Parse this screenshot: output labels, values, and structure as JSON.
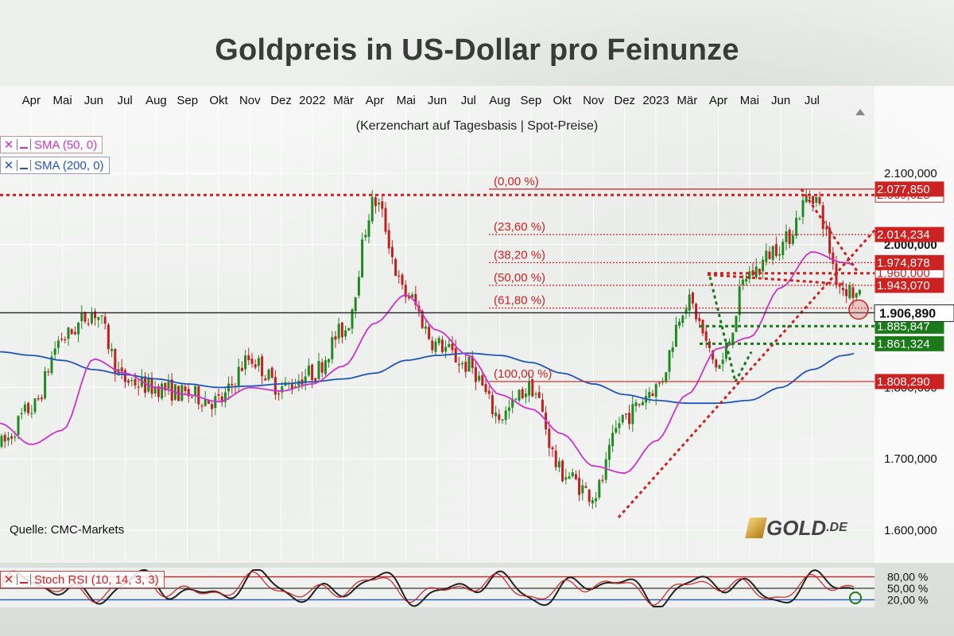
{
  "title": "Goldpreis in US-Dollar pro Feinunze",
  "subtitle": "(Kerzenchart auf Tagesbasis | Spot-Preise)",
  "source": "Quelle: CMC-Markets",
  "logo": {
    "main": "GOLD",
    "suffix": ".DE"
  },
  "legend": {
    "sma50": {
      "label": "SMA (50, 0)",
      "color": "#cc33cc"
    },
    "sma200": {
      "label": "SMA (200, 0)",
      "color": "#2255bb"
    },
    "stoch": {
      "label": "Stoch RSI (10, 14, 3, 3)"
    }
  },
  "months": [
    "Apr",
    "Mai",
    "Jun",
    "Jul",
    "Aug",
    "Sep",
    "Okt",
    "Nov",
    "Dez",
    "2022",
    "Mär",
    "Apr",
    "Mai",
    "Jun",
    "Jul",
    "Aug",
    "Sep",
    "Okt",
    "Nov",
    "Dez",
    "2023",
    "Mär",
    "Apr",
    "Mai",
    "Jun",
    "Jul"
  ],
  "colors": {
    "up": "#1f8a1f",
    "down": "#c0201f",
    "fib": "#cc2222",
    "support": "#1a7a1a",
    "current": "#222222"
  },
  "chart_data": {
    "type": "candlestick",
    "title": "Goldpreis in US-Dollar pro Feinunze",
    "subtitle": "(Kerzenchart auf Tagesbasis | Spot-Preise)",
    "y_axis_ticks": [
      "2.100,000",
      "2.000,000",
      "1.800,000",
      "1.700,000",
      "1.600,000"
    ],
    "y_axis_tick_values": [
      2100,
      2000,
      1800,
      1700,
      1600
    ],
    "ylim": [
      1580,
      2120
    ],
    "x_range": [
      "2021-03",
      "2023-07"
    ],
    "price_path": [
      [
        "2021-03",
        1720
      ],
      [
        "2021-04",
        1770
      ],
      [
        "2021-05",
        1870
      ],
      [
        "2021-06",
        1905
      ],
      [
        "2021-07",
        1810
      ],
      [
        "2021-08",
        1800
      ],
      [
        "2021-09",
        1790
      ],
      [
        "2021-10",
        1780
      ],
      [
        "2021-11",
        1840
      ],
      [
        "2021-12",
        1800
      ],
      [
        "2022-01",
        1820
      ],
      [
        "2022-02",
        1880
      ],
      [
        "2022-03",
        2060
      ],
      [
        "2022-04",
        1930
      ],
      [
        "2022-05",
        1860
      ],
      [
        "2022-06",
        1830
      ],
      [
        "2022-07",
        1760
      ],
      [
        "2022-08",
        1800
      ],
      [
        "2022-09",
        1680
      ],
      [
        "2022-10",
        1650
      ],
      [
        "2022-11",
        1760
      ],
      [
        "2022-12",
        1800
      ],
      [
        "2023-01",
        1920
      ],
      [
        "2023-02",
        1830
      ],
      [
        "2023-03",
        1960
      ],
      [
        "2023-04",
        2000
      ],
      [
        "2023-05",
        2070
      ],
      [
        "2023-06",
        1940
      ],
      [
        "2023-07",
        1910
      ]
    ],
    "sma50": [
      [
        "2021-03",
        1750
      ],
      [
        "2021-04",
        1720
      ],
      [
        "2021-05",
        1740
      ],
      [
        "2021-06",
        1840
      ],
      [
        "2021-07",
        1820
      ],
      [
        "2021-08",
        1800
      ],
      [
        "2021-09",
        1790
      ],
      [
        "2021-10",
        1780
      ],
      [
        "2021-11",
        1800
      ],
      [
        "2021-12",
        1795
      ],
      [
        "2022-01",
        1805
      ],
      [
        "2022-02",
        1830
      ],
      [
        "2022-03",
        1890
      ],
      [
        "2022-04",
        1930
      ],
      [
        "2022-05",
        1880
      ],
      [
        "2022-06",
        1845
      ],
      [
        "2022-07",
        1790
      ],
      [
        "2022-08",
        1770
      ],
      [
        "2022-09",
        1735
      ],
      [
        "2022-10",
        1690
      ],
      [
        "2022-11",
        1680
      ],
      [
        "2022-12",
        1725
      ],
      [
        "2023-01",
        1790
      ],
      [
        "2023-02",
        1855
      ],
      [
        "2023-03",
        1870
      ],
      [
        "2023-04",
        1940
      ],
      [
        "2023-05",
        1990
      ],
      [
        "2023-06",
        1975
      ],
      [
        "2023-07",
        1960
      ]
    ],
    "sma200": [
      [
        "2021-03",
        1850
      ],
      [
        "2021-04",
        1845
      ],
      [
        "2021-05",
        1838
      ],
      [
        "2021-06",
        1825
      ],
      [
        "2021-07",
        1818
      ],
      [
        "2021-08",
        1812
      ],
      [
        "2021-09",
        1805
      ],
      [
        "2021-10",
        1800
      ],
      [
        "2021-11",
        1802
      ],
      [
        "2021-12",
        1805
      ],
      [
        "2022-01",
        1808
      ],
      [
        "2022-02",
        1812
      ],
      [
        "2022-03",
        1820
      ],
      [
        "2022-04",
        1838
      ],
      [
        "2022-05",
        1845
      ],
      [
        "2022-06",
        1848
      ],
      [
        "2022-07",
        1845
      ],
      [
        "2022-08",
        1835
      ],
      [
        "2022-09",
        1820
      ],
      [
        "2022-10",
        1805
      ],
      [
        "2022-11",
        1790
      ],
      [
        "2022-12",
        1782
      ],
      [
        "2023-01",
        1778
      ],
      [
        "2023-02",
        1778
      ],
      [
        "2023-03",
        1782
      ],
      [
        "2023-04",
        1800
      ],
      [
        "2023-05",
        1825
      ],
      [
        "2023-06",
        1845
      ],
      [
        "2023-07",
        1855
      ]
    ],
    "fibonacci": [
      {
        "label": "(0,00 %)",
        "value": 2077.85,
        "value_label": "2.077,850"
      },
      {
        "label": "(23,60 %)",
        "value": 2014.234,
        "value_label": "2.014,234"
      },
      {
        "label": "(38,20 %)",
        "value": 1974.878,
        "value_label": "1.974,878"
      },
      {
        "label": "(50,00 %)",
        "value": 1943.07,
        "value_label": "1.943,070"
      },
      {
        "label": "(61,80 %)",
        "value": 1911.262,
        "value_label": ""
      },
      {
        "label": "(100,00 %)",
        "value": 1808.29,
        "value_label": "1.808,290"
      }
    ],
    "resistance_lines": [
      {
        "value": 2069.625,
        "label": "2.069,625"
      },
      {
        "value": 1960.0,
        "label": "1.960,000"
      }
    ],
    "support_lines": [
      {
        "value": 1885.847,
        "label": "1.885,847"
      },
      {
        "value": 1861.324,
        "label": "1.861,324"
      }
    ],
    "current_price": {
      "value": 1906.89,
      "label": "1.906,890"
    },
    "stoch_rsi": {
      "levels": [
        {
          "value": 80,
          "label": "80,00 %"
        },
        {
          "value": 50,
          "label": "50,00 %"
        },
        {
          "value": 20,
          "label": "20,00 %"
        }
      ],
      "ylim": [
        0,
        100
      ]
    }
  }
}
